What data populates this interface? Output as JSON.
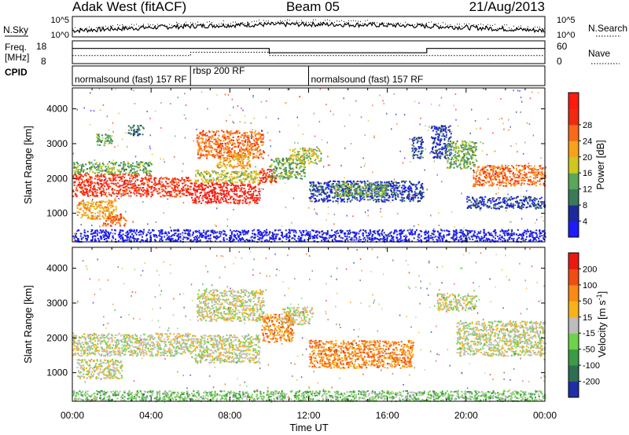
{
  "chart_data": {
    "type": "heatmap",
    "header": {
      "site": "Adak West (fitACF)",
      "beam": "Beam 05",
      "date": "21/Aug/2013"
    },
    "nsky_panel": {
      "left_label": "N.Sky",
      "right_label": "N.Search",
      "left_ticks": [
        "10^5",
        "10^0"
      ],
      "right_ticks": [
        "10^5",
        "10^0"
      ]
    },
    "freq_panel": {
      "left_label_1": "Freq.",
      "left_label_2": "[MHz]",
      "right_label": "Nave",
      "left_ticks": [
        "18",
        "8"
      ],
      "right_ticks": [
        "60",
        "0"
      ],
      "freq_steps": [
        [
          0,
          14.5
        ],
        [
          10.0,
          14.5
        ],
        [
          10.0,
          12.0
        ],
        [
          18.0,
          12.0
        ],
        [
          18.0,
          14.5
        ],
        [
          24,
          14.5
        ]
      ],
      "nave_steps": [
        [
          0,
          20
        ],
        [
          6.0,
          20
        ],
        [
          6.0,
          30
        ],
        [
          10.0,
          30
        ],
        [
          10.0,
          20
        ],
        [
          24,
          20
        ]
      ]
    },
    "cpid_panel": {
      "label": "CPID",
      "segments": [
        {
          "text": "normalsound (fast) 157 RF",
          "start": 0.0
        },
        {
          "text": "rbsp 200 RF",
          "start": 6.0
        },
        {
          "text": "normalsound (fast) 157 RF",
          "start": 12.0
        }
      ]
    },
    "x_axis": {
      "label": "Time UT",
      "range": [
        0,
        24
      ],
      "ticks": [
        0,
        4,
        8,
        12,
        16,
        20,
        24
      ],
      "tick_labels": [
        "00:00",
        "04:00",
        "08:00",
        "12:00",
        "16:00",
        "20:00",
        "00:00"
      ]
    },
    "y_axis": {
      "label": "Slant Range [km]",
      "range": [
        180,
        4600
      ],
      "ticks": [
        1000,
        2000,
        3000,
        4000
      ],
      "tick_labels": [
        "1000",
        "2000",
        "3000",
        "4000"
      ]
    },
    "power": {
      "colorbar_title": "Power [dB]",
      "colorbar_labels": [
        "4",
        "8",
        "12",
        "16",
        "20",
        "24",
        "28"
      ],
      "colors": [
        "#1c1cff",
        "#1c2a9e",
        "#3a7a5a",
        "#58a858",
        "#cfc71f",
        "#f7a21a",
        "#f76a1a",
        "#f02a10",
        "#ff1a10"
      ],
      "regions": [
        {
          "t0": 0.0,
          "t1": 4.0,
          "r0": 1500,
          "r1": 2150,
          "level": 7
        },
        {
          "t0": 0.0,
          "t1": 4.0,
          "r0": 2150,
          "r1": 2500,
          "level": 3
        },
        {
          "t0": 0.2,
          "t1": 2.2,
          "r0": 850,
          "r1": 1400,
          "level": 5
        },
        {
          "t0": 1.5,
          "t1": 2.7,
          "r0": 650,
          "r1": 1000,
          "level": 6
        },
        {
          "t0": 1.2,
          "t1": 2.0,
          "r0": 2950,
          "r1": 3300,
          "level": 3
        },
        {
          "t0": 2.8,
          "t1": 3.6,
          "r0": 3250,
          "r1": 3550,
          "level": 2
        },
        {
          "t0": 4.0,
          "t1": 6.0,
          "r0": 1500,
          "r1": 2050,
          "level": 7
        },
        {
          "t0": 6.0,
          "t1": 9.5,
          "r0": 1300,
          "r1": 1900,
          "level": 8
        },
        {
          "t0": 6.2,
          "t1": 9.5,
          "r0": 1900,
          "r1": 2250,
          "level": 4
        },
        {
          "t0": 6.3,
          "t1": 9.7,
          "r0": 2600,
          "r1": 3400,
          "level": 6
        },
        {
          "t0": 7.3,
          "t1": 9.0,
          "r0": 2300,
          "r1": 2750,
          "level": 5
        },
        {
          "t0": 9.5,
          "t1": 10.4,
          "r0": 1900,
          "r1": 2300,
          "level": 7
        },
        {
          "t0": 10.0,
          "t1": 11.8,
          "r0": 2000,
          "r1": 2600,
          "level": 3
        },
        {
          "t0": 11.0,
          "t1": 12.6,
          "r0": 2450,
          "r1": 2900,
          "level": 4
        },
        {
          "t0": 12.0,
          "t1": 17.8,
          "r0": 1350,
          "r1": 1950,
          "level": 1
        },
        {
          "t0": 13.3,
          "t1": 16.0,
          "r0": 1500,
          "r1": 1900,
          "level": 3
        },
        {
          "t0": 17.2,
          "t1": 17.8,
          "r0": 2600,
          "r1": 3200,
          "level": 1
        },
        {
          "t0": 18.2,
          "t1": 19.2,
          "r0": 2600,
          "r1": 3550,
          "level": 1
        },
        {
          "t0": 19.0,
          "t1": 20.5,
          "r0": 2300,
          "r1": 3100,
          "level": 3
        },
        {
          "t0": 20.3,
          "t1": 24.0,
          "r0": 1800,
          "r1": 2400,
          "level": 6
        },
        {
          "t0": 20.0,
          "t1": 24.0,
          "r0": 1150,
          "r1": 1500,
          "level": 1
        },
        {
          "t0": 0.0,
          "t1": 24.0,
          "r0": 200,
          "r1": 550,
          "level": 0
        }
      ]
    },
    "velocity": {
      "colorbar_title": "Velocity [m s^-1]",
      "colorbar_labels": [
        "200",
        "100",
        "50",
        "15",
        "-15",
        "-50",
        "-100",
        "-200"
      ],
      "colors": [
        "#1e2ea8",
        "#2d6e53",
        "#3d9b45",
        "#6fd34a",
        "#bdbdbd",
        "#f9b319",
        "#f98a14",
        "#f14c12",
        "#ea1a10"
      ],
      "regions": [
        {
          "t0": 0.0,
          "t1": 6.0,
          "r0": 1500,
          "r1": 2150,
          "level": 4
        },
        {
          "t0": 0.2,
          "t1": 2.5,
          "r0": 850,
          "r1": 1400,
          "level": 4
        },
        {
          "t0": 6.0,
          "t1": 9.5,
          "r0": 1300,
          "r1": 2100,
          "level": 4
        },
        {
          "t0": 6.3,
          "t1": 9.7,
          "r0": 2500,
          "r1": 3400,
          "level": 4
        },
        {
          "t0": 9.6,
          "t1": 11.2,
          "r0": 1900,
          "r1": 2700,
          "level": 6
        },
        {
          "t0": 10.6,
          "t1": 12.2,
          "r0": 2400,
          "r1": 2900,
          "level": 4
        },
        {
          "t0": 12.0,
          "t1": 17.3,
          "r0": 1150,
          "r1": 1950,
          "level": 6
        },
        {
          "t0": 19.5,
          "t1": 24.0,
          "r0": 1500,
          "r1": 2500,
          "level": 4
        },
        {
          "t0": 18.5,
          "t1": 20.5,
          "r0": 2800,
          "r1": 3300,
          "level": 4
        },
        {
          "t0": 0.0,
          "t1": 24.0,
          "r0": 200,
          "r1": 500,
          "level": 3
        }
      ]
    }
  }
}
